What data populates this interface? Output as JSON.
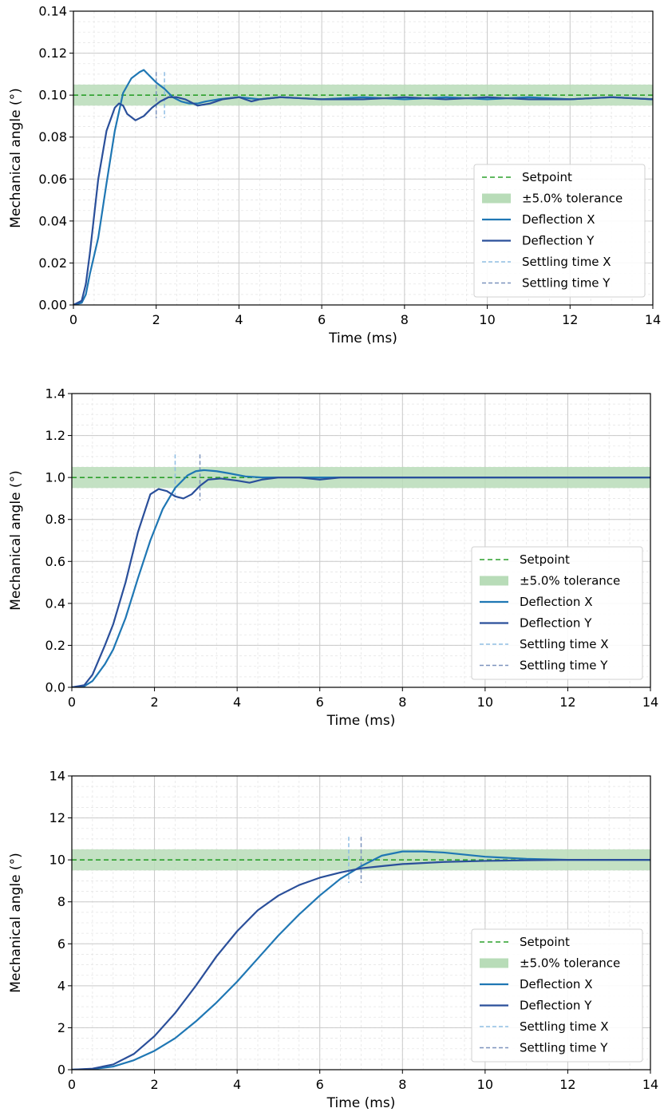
{
  "colors": {
    "setpoint": "#2ca02c",
    "tolerance": "#b8dcb8",
    "deflection_x": "#1f77b4",
    "deflection_y": "#2a4f9a",
    "settling_x": "#8fbde3",
    "settling_y": "#7c93bd",
    "grid_major": "#c9c9c9",
    "grid_minor": "#e6e6e6"
  },
  "chart_data": [
    {
      "type": "line",
      "xlabel": "Time (ms)",
      "ylabel": "Mechanical angle (°)",
      "xlim": [
        0,
        14
      ],
      "ylim": [
        0,
        0.14
      ],
      "xticks": [
        0,
        2,
        4,
        6,
        8,
        10,
        12,
        14
      ],
      "xtick_labels": [
        "0",
        "2",
        "4",
        "6",
        "8",
        "10",
        "12",
        "14"
      ],
      "yticks": [
        0,
        0.02,
        0.04,
        0.06,
        0.08,
        0.1,
        0.12,
        0.14
      ],
      "ytick_labels": [
        "0.00",
        "0.02",
        "0.04",
        "0.06",
        "0.08",
        "0.10",
        "0.12",
        "0.14"
      ],
      "grid": true,
      "setpoint": 0.1,
      "tolerance_band": [
        0.095,
        0.105
      ],
      "settling_times": {
        "x": 2.2,
        "y": 2.0
      },
      "settling_marker_range": [
        0.089,
        0.111
      ],
      "legend_position": "center-right",
      "legend": [
        "Setpoint",
        "±5.0% tolerance",
        "Deflection X",
        "Deflection Y",
        "Settling time X",
        "Settling time Y"
      ],
      "series": [
        {
          "name": "Deflection X",
          "x": [
            0,
            0.2,
            0.3,
            0.4,
            0.6,
            0.8,
            1.0,
            1.2,
            1.4,
            1.6,
            1.7,
            1.8,
            2.0,
            2.2,
            2.4,
            2.6,
            2.8,
            3.0,
            3.2,
            3.5,
            4.0,
            4.5,
            5.0,
            6.0,
            7.0,
            8.0,
            9.0,
            10.0,
            11.0,
            12.0,
            13.0,
            14.0
          ],
          "y": [
            0,
            0.001,
            0.005,
            0.015,
            0.032,
            0.058,
            0.083,
            0.101,
            0.108,
            0.111,
            0.112,
            0.11,
            0.106,
            0.103,
            0.099,
            0.097,
            0.096,
            0.096,
            0.097,
            0.098,
            0.099,
            0.098,
            0.099,
            0.098,
            0.099,
            0.098,
            0.099,
            0.098,
            0.099,
            0.098,
            0.099,
            0.098
          ]
        },
        {
          "name": "Deflection Y",
          "x": [
            0,
            0.2,
            0.3,
            0.4,
            0.6,
            0.8,
            1.0,
            1.1,
            1.2,
            1.3,
            1.5,
            1.7,
            1.9,
            2.1,
            2.3,
            2.5,
            2.7,
            3.0,
            3.3,
            3.6,
            4.0,
            4.3,
            4.5,
            5.0,
            6.0,
            7.0,
            8.0,
            9.0,
            10.0,
            11.0,
            12.0,
            13.0,
            14.0
          ],
          "y": [
            0,
            0.002,
            0.01,
            0.025,
            0.06,
            0.083,
            0.094,
            0.096,
            0.095,
            0.091,
            0.088,
            0.09,
            0.094,
            0.097,
            0.099,
            0.099,
            0.098,
            0.095,
            0.096,
            0.098,
            0.099,
            0.097,
            0.098,
            0.099,
            0.098,
            0.098,
            0.099,
            0.098,
            0.099,
            0.098,
            0.098,
            0.099,
            0.098
          ]
        }
      ]
    },
    {
      "type": "line",
      "xlabel": "Time (ms)",
      "ylabel": "Mechanical angle (°)",
      "xlim": [
        0,
        14
      ],
      "ylim": [
        0,
        1.4
      ],
      "xticks": [
        0,
        2,
        4,
        6,
        8,
        10,
        12,
        14
      ],
      "xtick_labels": [
        "0",
        "2",
        "4",
        "6",
        "8",
        "10",
        "12",
        "14"
      ],
      "yticks": [
        0,
        0.2,
        0.4,
        0.6,
        0.8,
        1.0,
        1.2,
        1.4
      ],
      "ytick_labels": [
        "0.0",
        "0.2",
        "0.4",
        "0.6",
        "0.8",
        "1.0",
        "1.2",
        "1.4"
      ],
      "grid": true,
      "setpoint": 1.0,
      "tolerance_band": [
        0.95,
        1.05
      ],
      "settling_times": {
        "x": 2.5,
        "y": 3.1
      },
      "settling_marker_range": [
        0.89,
        1.11
      ],
      "legend_position": "center-right",
      "legend": [
        "Setpoint",
        "±5.0% tolerance",
        "Deflection X",
        "Deflection Y",
        "Settling time X",
        "Settling time Y"
      ],
      "series": [
        {
          "name": "Deflection X",
          "x": [
            0,
            0.3,
            0.5,
            0.8,
            1.0,
            1.3,
            1.6,
            1.9,
            2.2,
            2.5,
            2.8,
            3.0,
            3.2,
            3.5,
            3.8,
            4.2,
            4.6,
            5.0,
            5.5,
            6.0,
            7.0,
            8.0,
            9.0,
            10.0,
            11.0,
            12.0,
            13.0,
            14.0
          ],
          "y": [
            0,
            0.005,
            0.03,
            0.11,
            0.18,
            0.33,
            0.52,
            0.7,
            0.85,
            0.95,
            1.01,
            1.03,
            1.035,
            1.03,
            1.02,
            1.005,
            1.0,
            1.0,
            1.0,
            1.0,
            1.0,
            1.0,
            1.0,
            1.0,
            1.0,
            1.0,
            1.0,
            1.0
          ]
        },
        {
          "name": "Deflection Y",
          "x": [
            0,
            0.3,
            0.5,
            0.8,
            1.0,
            1.3,
            1.6,
            1.9,
            2.1,
            2.3,
            2.5,
            2.7,
            2.9,
            3.1,
            3.3,
            3.6,
            4.0,
            4.3,
            4.6,
            5.0,
            5.5,
            6.0,
            6.5,
            7.0,
            8.0,
            9.0,
            10.0,
            11.0,
            12.0,
            13.0,
            14.0
          ],
          "y": [
            0,
            0.01,
            0.06,
            0.2,
            0.3,
            0.5,
            0.74,
            0.92,
            0.945,
            0.935,
            0.91,
            0.9,
            0.92,
            0.96,
            0.99,
            0.995,
            0.985,
            0.975,
            0.99,
            1.0,
            1.0,
            0.99,
            1.0,
            1.0,
            1.0,
            1.0,
            1.0,
            1.0,
            1.0,
            1.0,
            1.0
          ]
        }
      ]
    },
    {
      "type": "line",
      "xlabel": "Time (ms)",
      "ylabel": "Mechanical angle (°)",
      "xlim": [
        0,
        14
      ],
      "ylim": [
        0,
        14
      ],
      "xticks": [
        0,
        2,
        4,
        6,
        8,
        10,
        12,
        14
      ],
      "xtick_labels": [
        "0",
        "2",
        "4",
        "6",
        "8",
        "10",
        "12",
        "14"
      ],
      "yticks": [
        0,
        2,
        4,
        6,
        8,
        10,
        12,
        14
      ],
      "ytick_labels": [
        "0",
        "2",
        "4",
        "6",
        "8",
        "10",
        "12",
        "14"
      ],
      "grid": true,
      "setpoint": 10,
      "tolerance_band": [
        9.5,
        10.5
      ],
      "settling_times": {
        "x": 6.7,
        "y": 7.0
      },
      "settling_marker_range": [
        8.9,
        11.1
      ],
      "legend_position": "center-right",
      "legend": [
        "Setpoint",
        "±5.0% tolerance",
        "Deflection X",
        "Deflection Y",
        "Settling time X",
        "Settling time Y"
      ],
      "series": [
        {
          "name": "Deflection X",
          "x": [
            0,
            0.5,
            1.0,
            1.5,
            2.0,
            2.5,
            3.0,
            3.5,
            4.0,
            4.5,
            5.0,
            5.5,
            6.0,
            6.5,
            7.0,
            7.5,
            8.0,
            8.5,
            9.0,
            9.5,
            10.0,
            11.0,
            12.0,
            13.0,
            14.0
          ],
          "y": [
            0,
            0.03,
            0.15,
            0.45,
            0.9,
            1.5,
            2.3,
            3.2,
            4.2,
            5.3,
            6.4,
            7.4,
            8.3,
            9.1,
            9.7,
            10.2,
            10.4,
            10.4,
            10.35,
            10.25,
            10.15,
            10.05,
            10.0,
            10.0,
            10.0
          ]
        },
        {
          "name": "Deflection Y",
          "x": [
            0,
            0.5,
            1.0,
            1.5,
            2.0,
            2.5,
            3.0,
            3.5,
            4.0,
            4.5,
            5.0,
            5.5,
            6.0,
            6.5,
            7.0,
            7.5,
            8.0,
            9.0,
            10.0,
            11.0,
            12.0,
            13.0,
            14.0
          ],
          "y": [
            0,
            0.05,
            0.25,
            0.75,
            1.6,
            2.7,
            4.0,
            5.4,
            6.6,
            7.6,
            8.3,
            8.8,
            9.15,
            9.4,
            9.6,
            9.7,
            9.8,
            9.9,
            9.95,
            9.98,
            10.0,
            10.0,
            10.0
          ]
        }
      ]
    }
  ]
}
